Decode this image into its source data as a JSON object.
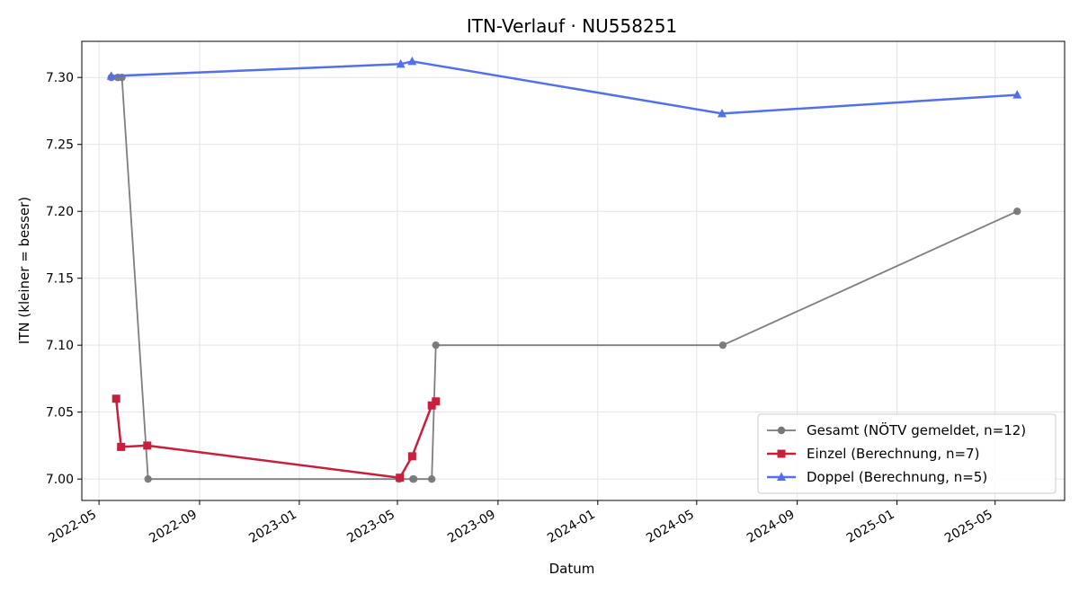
{
  "chart_data": {
    "type": "line",
    "title": "ITN-Verlauf · NU558251",
    "xlabel": "Datum",
    "ylabel": "ITN  (kleiner = besser)",
    "x_ticks": [
      "2022-05",
      "2022-09",
      "2023-01",
      "2023-05",
      "2023-09",
      "2024-01",
      "2024-05",
      "2024-09",
      "2025-01",
      "2025-05"
    ],
    "y_ticks": [
      "7.00",
      "7.05",
      "7.10",
      "7.15",
      "7.20",
      "7.25",
      "7.30"
    ],
    "xlim": [
      "2022-04-10",
      "2025-07-25"
    ],
    "ylim": [
      6.984,
      7.327
    ],
    "grid": true,
    "legend_position": "bottom-right",
    "series": [
      {
        "name": "Gesamt (NÖTV gemeldet, n=12)",
        "color": "#777777",
        "marker": "circle",
        "points": [
          {
            "x": "2022-05-16",
            "y": 7.3
          },
          {
            "x": "2022-05-24",
            "y": 7.3
          },
          {
            "x": "2022-05-29",
            "y": 7.3
          },
          {
            "x": "2022-06-30",
            "y": 7.0
          },
          {
            "x": "2023-05-03",
            "y": 7.0
          },
          {
            "x": "2023-05-20",
            "y": 7.0
          },
          {
            "x": "2023-05-21",
            "y": 7.0
          },
          {
            "x": "2023-06-12",
            "y": 7.0
          },
          {
            "x": "2023-06-17",
            "y": 7.1
          },
          {
            "x": "2024-06-02",
            "y": 7.1
          },
          {
            "x": "2025-05-28",
            "y": 7.2
          }
        ]
      },
      {
        "name": "Einzel (Berechnung, n=7)",
        "color": "#c8203c",
        "marker": "square",
        "points": [
          {
            "x": "2022-05-22",
            "y": 7.06
          },
          {
            "x": "2022-05-28",
            "y": 7.024
          },
          {
            "x": "2022-06-29",
            "y": 7.025
          },
          {
            "x": "2023-05-04",
            "y": 7.001
          },
          {
            "x": "2023-05-19",
            "y": 7.017
          },
          {
            "x": "2023-06-12",
            "y": 7.055
          },
          {
            "x": "2023-06-17",
            "y": 7.058
          }
        ]
      },
      {
        "name": "Doppel (Berechnung, n=5)",
        "color": "#5470e8",
        "marker": "triangle",
        "points": [
          {
            "x": "2022-05-16",
            "y": 7.301
          },
          {
            "x": "2023-05-05",
            "y": 7.31
          },
          {
            "x": "2023-05-19",
            "y": 7.312
          },
          {
            "x": "2024-06-01",
            "y": 7.273
          },
          {
            "x": "2025-05-28",
            "y": 7.287
          }
        ]
      }
    ]
  }
}
